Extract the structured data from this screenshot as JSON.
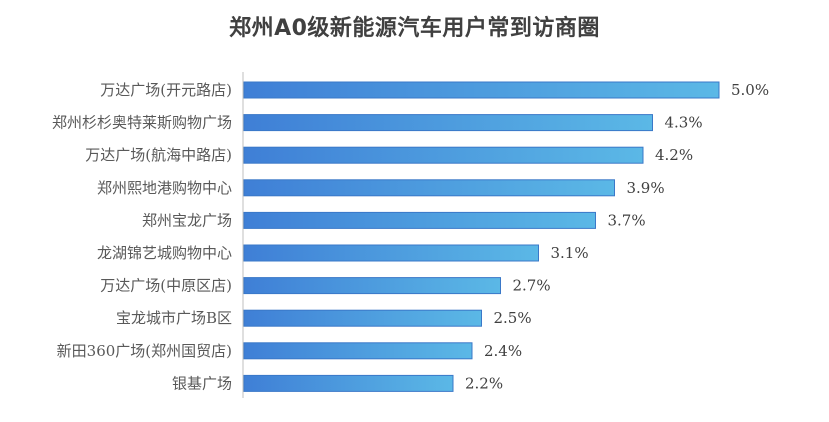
{
  "chart_data": {
    "type": "bar",
    "orientation": "horizontal",
    "title": "郑州A0级新能源汽车用户常到访商圈",
    "xlabel": "",
    "ylabel": "",
    "categories": [
      "万达广场(开元路店)",
      "郑州杉杉奥特莱斯购物广场",
      "万达广场(航海中路店)",
      "郑州熙地港购物中心",
      "郑州宝龙广场",
      "龙湖锦艺城购物中心",
      "万达广场(中原区店)",
      "宝龙城市广场B区",
      "新田360广场(郑州国贸店)",
      "银基广场"
    ],
    "values": [
      5.0,
      4.3,
      4.2,
      3.9,
      3.7,
      3.1,
      2.7,
      2.5,
      2.4,
      2.2
    ],
    "value_labels": [
      "5.0%",
      "4.3%",
      "4.2%",
      "3.9%",
      "3.7%",
      "3.1%",
      "2.7%",
      "2.5%",
      "2.4%",
      "2.2%"
    ],
    "unit": "%",
    "xlim": [
      0,
      5.0
    ],
    "grid": false,
    "legend": "none",
    "colors": {
      "bar_start": "#3f7fd6",
      "bar_end": "#5bb8e6",
      "bar_stroke": "#3a78c8",
      "axis": "#bfbfbf"
    }
  }
}
